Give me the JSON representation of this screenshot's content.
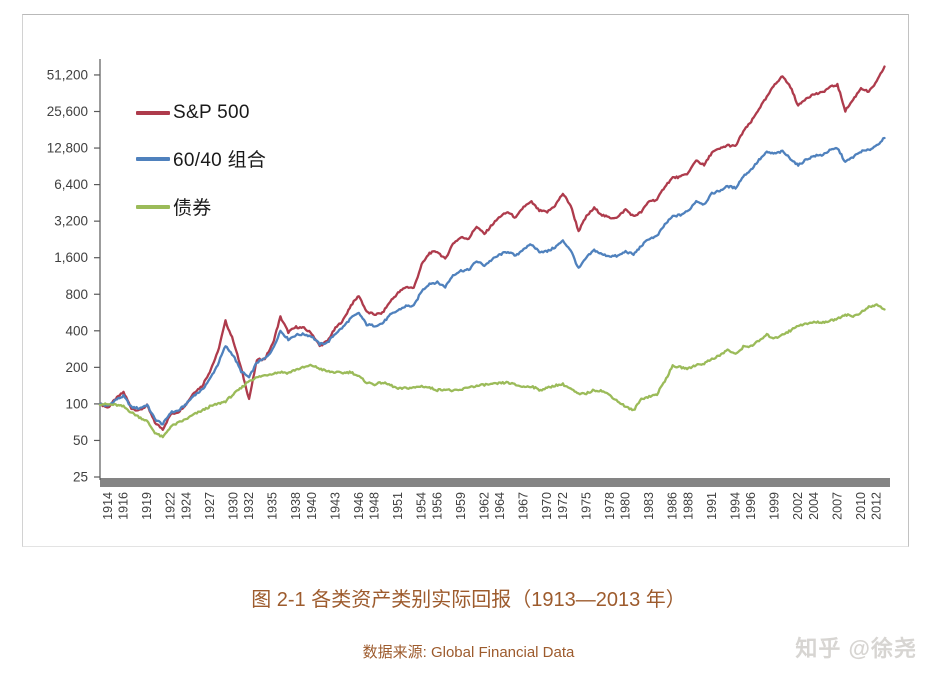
{
  "caption": {
    "title": "图 2-1 各类资产类别实际回报（1913—2013 年）",
    "source": "数据来源: Global Financial Data"
  },
  "watermark": {
    "text": "知乎 @徐尧"
  },
  "colors": {
    "sp500": "#ae3b4c",
    "portfolio6040": "#4f81bd",
    "bonds": "#9bbb59",
    "axis": "#595959",
    "tick_text": "#404040",
    "x_axis_bar": "#848484"
  },
  "chart_data": {
    "type": "line",
    "title": "图 2-1 各类资产类别实际回报（1913—2013 年）",
    "y_scale": "log2",
    "grid": "off",
    "legend_position": "upper-left-inside",
    "x_range": [
      1913,
      2013
    ],
    "y_ticks": [
      25,
      50,
      100,
      200,
      400,
      800,
      1600,
      3200,
      6400,
      12800,
      25600,
      51200
    ],
    "y_tick_labels": [
      "25",
      "50",
      "100",
      "200",
      "400",
      "800",
      "1,600",
      "3,200",
      "6,400",
      "12,800",
      "25,600",
      "51,200"
    ],
    "x_tick_labels": [
      "1914",
      "1916",
      "1919",
      "1922",
      "1924",
      "1927",
      "1930",
      "1932",
      "1935",
      "1938",
      "1940",
      "1943",
      "1946",
      "1948",
      "1951",
      "1954",
      "1956",
      "1959",
      "1962",
      "1964",
      "1967",
      "1970",
      "1972",
      "1975",
      "1978",
      "1980",
      "1983",
      "1986",
      "1988",
      "1991",
      "1994",
      "1996",
      "1999",
      "2002",
      "2004",
      "2007",
      "2010",
      "2012"
    ],
    "years_start": 1913,
    "series": [
      {
        "name": "S&P 500",
        "color": "#ae3b4c",
        "values": [
          100,
          93,
          110,
          125,
          92,
          88,
          97,
          70,
          62,
          82,
          86,
          100,
          125,
          140,
          185,
          265,
          480,
          330,
          195,
          110,
          230,
          235,
          310,
          520,
          390,
          430,
          420,
          380,
          300,
          330,
          420,
          490,
          650,
          780,
          570,
          545,
          560,
          700,
          820,
          920,
          900,
          1400,
          1750,
          1800,
          1550,
          2100,
          2350,
          2300,
          2900,
          2500,
          3000,
          3500,
          3800,
          3400,
          4200,
          4600,
          3900,
          3800,
          4300,
          5400,
          4300,
          2650,
          3500,
          4100,
          3600,
          3400,
          3450,
          4000,
          3500,
          3800,
          4700,
          4800,
          6200,
          7300,
          7400,
          8000,
          10200,
          9200,
          11800,
          12600,
          13500,
          13200,
          17600,
          21000,
          27000,
          33500,
          43000,
          50000,
          41000,
          28500,
          33000,
          35500,
          36500,
          40500,
          42500,
          26000,
          32000,
          40000,
          37000,
          45000,
          60000
        ]
      },
      {
        "name": "60/40 组合",
        "color": "#4f81bd",
        "values": [
          100,
          96,
          108,
          116,
          94,
          92,
          98,
          75,
          68,
          85,
          88,
          100,
          118,
          130,
          160,
          210,
          300,
          250,
          185,
          165,
          220,
          235,
          280,
          400,
          340,
          370,
          375,
          360,
          310,
          320,
          380,
          430,
          510,
          560,
          450,
          440,
          460,
          540,
          590,
          640,
          640,
          850,
          980,
          1000,
          920,
          1150,
          1250,
          1270,
          1500,
          1380,
          1550,
          1700,
          1800,
          1650,
          1900,
          2050,
          1800,
          1800,
          1950,
          2200,
          1850,
          1300,
          1600,
          1850,
          1700,
          1650,
          1650,
          1800,
          1700,
          2000,
          2300,
          2400,
          3000,
          3500,
          3600,
          3900,
          4700,
          4400,
          5400,
          5700,
          6200,
          6000,
          7500,
          8500,
          10200,
          11800,
          11500,
          12000,
          10500,
          9200,
          10300,
          11000,
          11200,
          12200,
          12800,
          9800,
          10800,
          12000,
          12300,
          13500,
          15500
        ]
      },
      {
        "name": "债券",
        "color": "#9bbb59",
        "values": [
          100,
          99,
          98,
          95,
          85,
          78,
          72,
          58,
          53,
          65,
          70,
          75,
          82,
          88,
          95,
          100,
          105,
          120,
          135,
          155,
          165,
          172,
          178,
          183,
          180,
          192,
          200,
          208,
          195,
          185,
          182,
          180,
          183,
          168,
          150,
          145,
          150,
          143,
          133,
          135,
          136,
          140,
          136,
          130,
          132,
          128,
          130,
          138,
          140,
          144,
          145,
          148,
          150,
          143,
          138,
          140,
          130,
          135,
          142,
          145,
          133,
          120,
          122,
          130,
          128,
          118,
          105,
          95,
          88,
          110,
          115,
          120,
          155,
          205,
          200,
          195,
          210,
          215,
          235,
          250,
          280,
          255,
          295,
          300,
          330,
          370,
          345,
          375,
          400,
          445,
          455,
          470,
          470,
          480,
          505,
          545,
          525,
          565,
          625,
          655,
          600
        ]
      }
    ]
  }
}
